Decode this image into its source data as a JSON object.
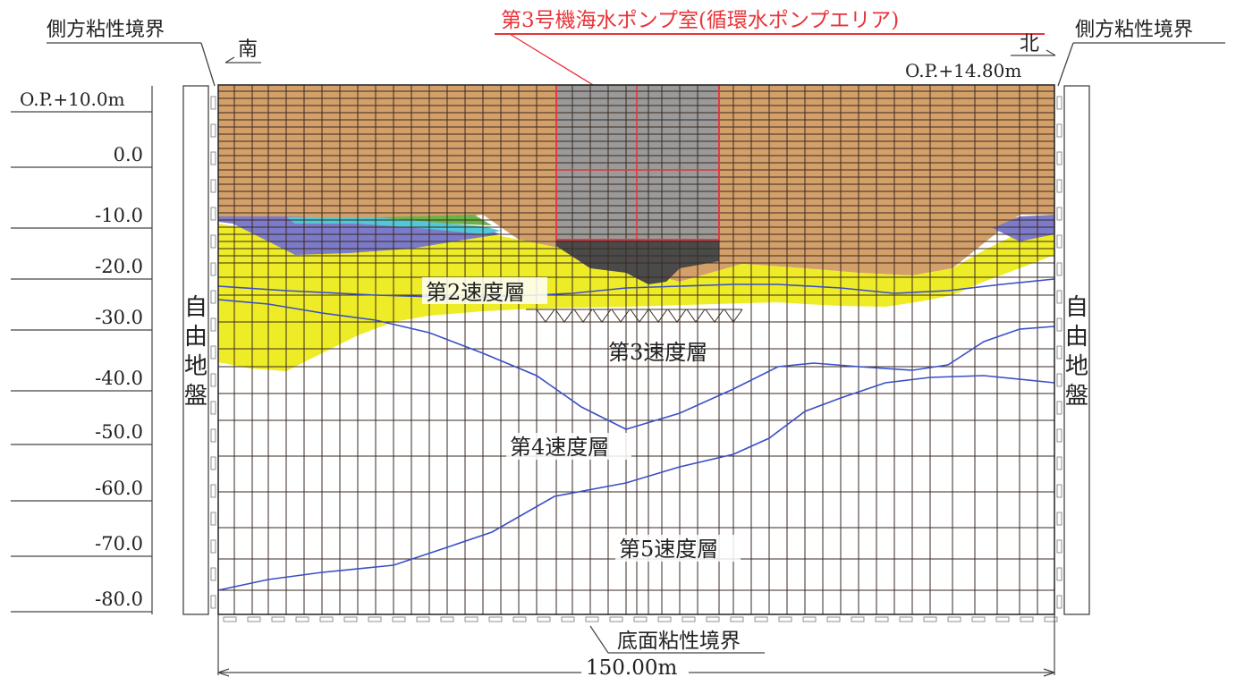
{
  "title": "第3号機海水ポンプ室(循環水ポンプエリア)",
  "boundaries": {
    "side_left": "側方粘性境界",
    "side_right": "側方粘性境界",
    "bottom": "底面粘性境界"
  },
  "directions": {
    "south": "南",
    "north": "北"
  },
  "elevations": {
    "top_left": "O.P.+10.0m",
    "top_right": "O.P.+14.80m"
  },
  "width_label": "150.00m",
  "free_field": {
    "left": [
      "自",
      "由",
      "地",
      "盤"
    ],
    "right": [
      "自",
      "由",
      "地",
      "盤"
    ]
  },
  "axis_ticks": [
    "0.0",
    "-10.0",
    "-20.0",
    "-30.0",
    "-40.0",
    "-50.0",
    "-60.0",
    "-70.0",
    "-80.0"
  ],
  "layers": {
    "layer2": "第2速度層",
    "layer3": "第3速度層",
    "layer4": "第4速度層",
    "layer5": "第5速度層"
  },
  "colors": {
    "fill_soil": "#d4a06a",
    "mesh_line": "#3a2a20",
    "yellow_layer": "#eeec27",
    "purple_layer": "#7c7bc9",
    "cyan_layer": "#50c8d8",
    "green_layer": "#6bb24a",
    "structure": "#9a9a9a",
    "structure_base": "#4a4a4a",
    "structure_outline": "#e8333a",
    "boundary_blue": "#3a4fc4"
  }
}
